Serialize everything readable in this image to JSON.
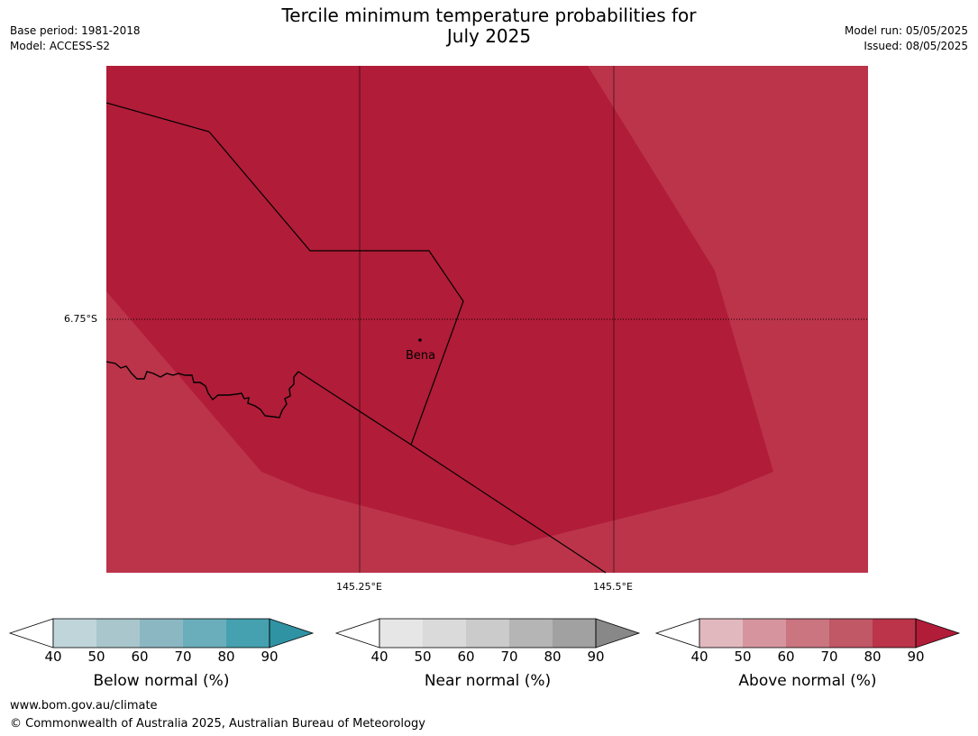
{
  "header": {
    "title_line1": "Tercile minimum temperature probabilities for",
    "title_line2": "July 2025",
    "base_period": "Base period: 1981-2018",
    "model": "Model: ACCESS-S2",
    "model_run": "Model run: 05/05/2025",
    "issued": "Issued: 08/05/2025"
  },
  "map": {
    "lat_label": "6.75°S",
    "lon_labels": [
      "145.25°E",
      "145.5°E"
    ],
    "place_label": "Bena",
    "colors": {
      "above_80_90": "#b11c38",
      "above_70_80": "#bb344a"
    }
  },
  "colorbars": [
    {
      "title": "Below normal (%)",
      "ticks": [
        "40",
        "50",
        "60",
        "70",
        "80",
        "90"
      ],
      "colors": [
        "#c0d5da",
        "#a8c6cc",
        "#8bb7c3",
        "#6baebb",
        "#45a1af",
        "#2f93a4"
      ]
    },
    {
      "title": "Near normal (%)",
      "ticks": [
        "40",
        "50",
        "60",
        "70",
        "80",
        "90"
      ],
      "colors": [
        "#e6e6e6",
        "#dadada",
        "#cbcbcb",
        "#b5b5b5",
        "#a1a1a1",
        "#888888"
      ]
    },
    {
      "title": "Above normal (%)",
      "ticks": [
        "40",
        "50",
        "60",
        "70",
        "80",
        "90"
      ],
      "colors": [
        "#e2b8bf",
        "#d6959e",
        "#ca7580",
        "#c05866",
        "#bb344a",
        "#b11c38"
      ]
    }
  ],
  "footer": {
    "website": "www.bom.gov.au/climate",
    "copyright": "© Commonwealth of Australia 2025, Australian Bureau of Meteorology"
  }
}
